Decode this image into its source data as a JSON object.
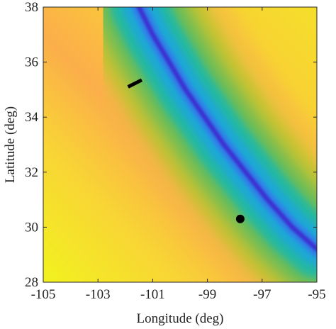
{
  "chart_data": {
    "type": "heatmap",
    "xlabel": "Longitude (deg)",
    "ylabel": "Latitude (deg)",
    "xlim": [
      -105,
      -95
    ],
    "ylim": [
      28,
      38
    ],
    "xticks": [
      -105,
      -103,
      -101,
      -99,
      -97,
      -95
    ],
    "yticks": [
      28,
      30,
      32,
      34,
      36,
      38
    ],
    "xtick_labels": [
      "-105",
      "-103",
      "-101",
      "-99",
      "-97",
      "-95"
    ],
    "ytick_labels": [
      "28",
      "30",
      "32",
      "34",
      "36",
      "38"
    ],
    "colormap": "parula",
    "colorbar": false,
    "grid": false,
    "minimum_curve": {
      "description_color": "#3c2bd0",
      "points": [
        [
          -101.5,
          38.0
        ],
        [
          -101.0,
          37.0
        ],
        [
          -100.4,
          36.0
        ],
        [
          -99.8,
          35.0
        ],
        [
          -99.1,
          34.0
        ],
        [
          -98.4,
          33.0
        ],
        [
          -97.6,
          32.0
        ],
        [
          -96.8,
          31.0
        ],
        [
          -95.9,
          30.0
        ],
        [
          -95.0,
          29.2
        ]
      ]
    },
    "markers": [
      {
        "kind": "dot",
        "x": -97.8,
        "y": 30.3,
        "color": "#000000"
      },
      {
        "kind": "segment",
        "x1": -101.9,
        "y1": 35.1,
        "x2": -101.4,
        "y2": 35.35,
        "color": "#000000"
      }
    ]
  }
}
